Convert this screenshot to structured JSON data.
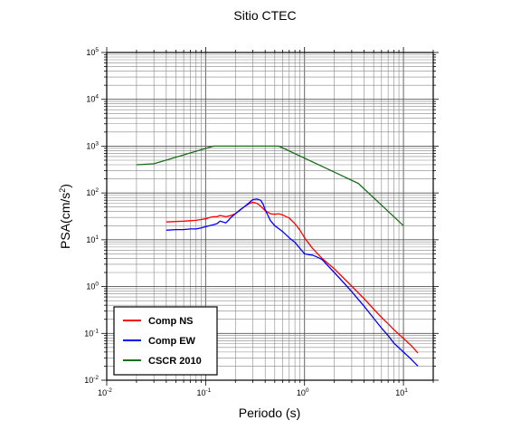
{
  "chart_data": {
    "type": "line",
    "title": "Sitio CTEC",
    "xlabel": "Periodo (s)",
    "ylabel_base": "PSA(cm/s",
    "ylabel_sup": "2",
    "ylabel_close": ")",
    "xscale": "log",
    "yscale": "log",
    "xlim": [
      0.01,
      20
    ],
    "ylim": [
      0.01,
      100000
    ],
    "x_ticks": [
      {
        "base": "10",
        "exp": "-2",
        "value": 0.01
      },
      {
        "base": "10",
        "exp": "-1",
        "value": 0.1
      },
      {
        "base": "10",
        "exp": "0",
        "value": 1
      },
      {
        "base": "10",
        "exp": "1",
        "value": 10
      }
    ],
    "y_ticks": [
      {
        "base": "10",
        "exp": "-2",
        "value": 0.01
      },
      {
        "base": "10",
        "exp": "-1",
        "value": 0.1
      },
      {
        "base": "10",
        "exp": "0",
        "value": 1
      },
      {
        "base": "10",
        "exp": "1",
        "value": 10
      },
      {
        "base": "10",
        "exp": "2",
        "value": 100
      },
      {
        "base": "10",
        "exp": "3",
        "value": 1000
      },
      {
        "base": "10",
        "exp": "4",
        "value": 10000
      },
      {
        "base": "10",
        "exp": "5",
        "value": 100000
      }
    ],
    "grid": true,
    "legend_position": "bottom-left",
    "series": [
      {
        "name": "Comp NS",
        "color": "#ff0000",
        "x": [
          0.04,
          0.05,
          0.06,
          0.07,
          0.08,
          0.09,
          0.1,
          0.11,
          0.12,
          0.13,
          0.14,
          0.15,
          0.16,
          0.17,
          0.18,
          0.2,
          0.22,
          0.25,
          0.28,
          0.3,
          0.33,
          0.36,
          0.4,
          0.45,
          0.5,
          0.55,
          0.6,
          0.7,
          0.8,
          0.9,
          1.0,
          1.2,
          1.5,
          2.0,
          2.5,
          3.0,
          4.0,
          5.0,
          6.0,
          7.0,
          8.0,
          10.0,
          12.0,
          14.0
        ],
        "y": [
          24,
          24.5,
          25,
          25.5,
          26,
          27,
          28,
          30,
          31,
          31,
          33,
          32,
          31,
          32,
          33,
          36,
          43,
          52,
          60,
          63,
          60,
          52,
          42,
          36,
          35,
          36,
          34,
          29,
          22,
          16,
          11,
          6.6,
          4.0,
          2.4,
          1.5,
          1.02,
          0.55,
          0.33,
          0.22,
          0.16,
          0.12,
          0.078,
          0.055,
          0.038
        ]
      },
      {
        "name": "Comp EW",
        "color": "#0000ff",
        "x": [
          0.04,
          0.05,
          0.06,
          0.07,
          0.08,
          0.09,
          0.1,
          0.11,
          0.12,
          0.13,
          0.14,
          0.15,
          0.16,
          0.17,
          0.18,
          0.2,
          0.22,
          0.25,
          0.28,
          0.3,
          0.33,
          0.36,
          0.38,
          0.4,
          0.45,
          0.5,
          0.6,
          0.7,
          0.8,
          0.9,
          1.0,
          1.1,
          1.2,
          1.3,
          1.5,
          2.0,
          2.5,
          3.0,
          4.0,
          5.0,
          6.0,
          7.0,
          8.0,
          10.0,
          12.0,
          14.0
        ],
        "y": [
          16,
          16.5,
          16.5,
          17,
          17,
          18,
          19,
          20,
          21,
          22,
          25,
          24,
          23,
          26,
          30,
          36,
          42,
          52,
          64,
          72,
          74,
          70,
          58,
          44,
          26,
          20,
          15,
          11,
          8.8,
          6.5,
          5.0,
          4.8,
          4.7,
          4.4,
          3.8,
          2.0,
          1.2,
          0.78,
          0.38,
          0.21,
          0.13,
          0.09,
          0.062,
          0.04,
          0.028,
          0.02
        ]
      },
      {
        "name": "CSCR 2010",
        "color": "#1a6e1a",
        "x": [
          0.02,
          0.03,
          0.12,
          0.55,
          3.5,
          10.0
        ],
        "y": [
          400,
          420,
          1000,
          1000,
          160,
          20
        ]
      }
    ]
  }
}
